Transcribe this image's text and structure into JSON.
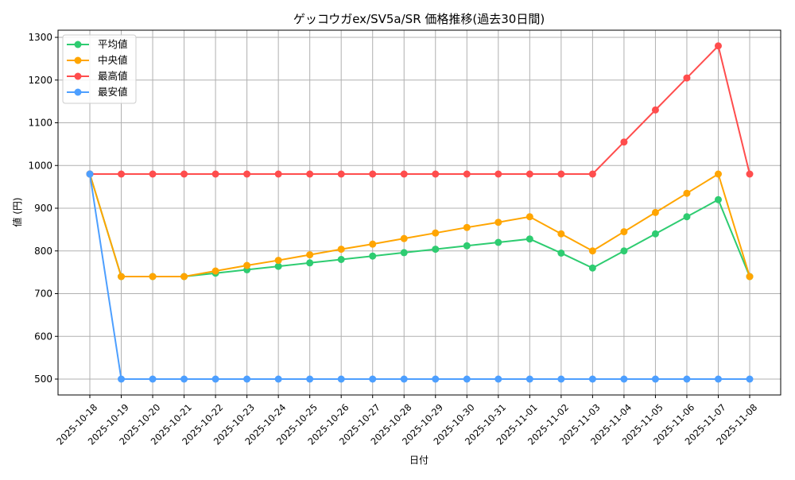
{
  "chart_data": {
    "type": "line",
    "title": "ゲッコウガex/SV5a/SR 価格推移(過去30日間)",
    "xlabel": "日付",
    "ylabel": "値 (円)",
    "ylim": [
      462,
      1320
    ],
    "yticks": [
      500,
      600,
      700,
      800,
      900,
      1000,
      1100,
      1200,
      1300
    ],
    "grid": true,
    "legend_position": "top-left",
    "categories": [
      "2025-10-18",
      "2025-10-19",
      "2025-10-20",
      "2025-10-21",
      "2025-10-22",
      "2025-10-23",
      "2025-10-24",
      "2025-10-25",
      "2025-10-26",
      "2025-10-27",
      "2025-10-28",
      "2025-10-29",
      "2025-10-30",
      "2025-10-31",
      "2025-11-01",
      "2025-11-02",
      "2025-11-03",
      "2025-11-04",
      "2025-11-05",
      "2025-11-06",
      "2025-11-07",
      "2025-11-08"
    ],
    "series": [
      {
        "name": "平均値",
        "color": "#2ecc71",
        "values": [
          980,
          740,
          740,
          740,
          748,
          756,
          764,
          772,
          780,
          788,
          796,
          804,
          812,
          820,
          828,
          795,
          760,
          800,
          840,
          880,
          920,
          740
        ]
      },
      {
        "name": "中央値",
        "color": "#ffa500",
        "values": [
          980,
          740,
          740,
          740,
          753,
          766,
          778,
          791,
          804,
          816,
          829,
          842,
          855,
          867,
          880,
          840,
          800,
          845,
          890,
          935,
          980,
          740
        ]
      },
      {
        "name": "最高値",
        "color": "#ff4d4d",
        "values": [
          980,
          980,
          980,
          980,
          980,
          980,
          980,
          980,
          980,
          980,
          980,
          980,
          980,
          980,
          980,
          980,
          980,
          1055,
          1130,
          1205,
          1280,
          980
        ]
      },
      {
        "name": "最安値",
        "color": "#4d9fff",
        "values": [
          980,
          500,
          500,
          500,
          500,
          500,
          500,
          500,
          500,
          500,
          500,
          500,
          500,
          500,
          500,
          500,
          500,
          500,
          500,
          500,
          500,
          500
        ]
      }
    ]
  }
}
